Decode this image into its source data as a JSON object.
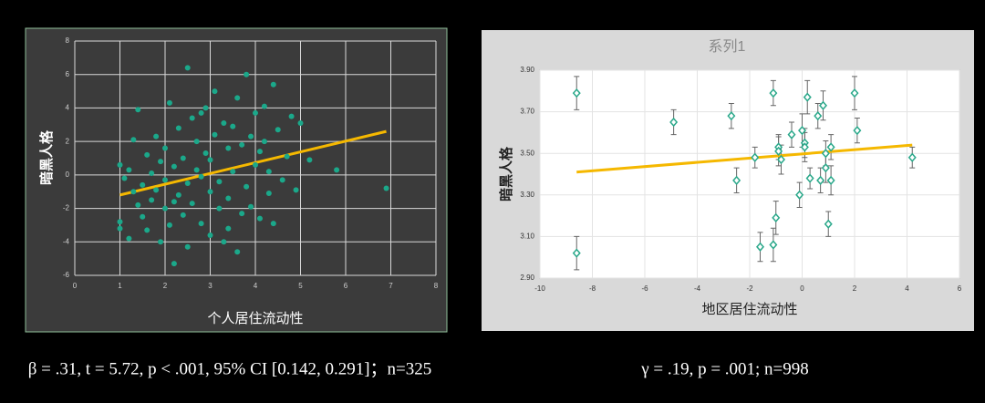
{
  "chart_data": [
    {
      "type": "scatter",
      "marker": "circle",
      "color": "#1ba88a",
      "background": "#3b3b3b",
      "border": "#8fbf9a",
      "grid_color": "#d8d8d8",
      "tick_color": "#cfcfcf",
      "xlabel": "个人居住流动性",
      "ylabel": "暗黑人格",
      "xlim": [
        0,
        8
      ],
      "xticks": [
        0,
        1,
        2,
        3,
        4,
        5,
        6,
        7,
        8
      ],
      "ylim": [
        -6,
        8
      ],
      "yticks": [
        -6,
        -4,
        -2,
        0,
        2,
        4,
        6,
        8
      ],
      "grid": true,
      "x": [
        1.0,
        1.0,
        1.0,
        1.1,
        1.2,
        1.2,
        1.3,
        1.3,
        1.4,
        1.4,
        1.5,
        1.5,
        1.6,
        1.6,
        1.7,
        1.7,
        1.8,
        1.8,
        1.9,
        1.9,
        2.0,
        2.0,
        2.0,
        2.1,
        2.1,
        2.2,
        2.2,
        2.3,
        2.3,
        2.4,
        2.4,
        2.5,
        2.5,
        2.5,
        2.6,
        2.6,
        2.7,
        2.7,
        2.8,
        2.8,
        2.9,
        2.9,
        3.0,
        3.0,
        3.0,
        3.1,
        3.1,
        3.2,
        3.2,
        3.3,
        3.3,
        3.4,
        3.4,
        3.5,
        3.5,
        3.6,
        3.6,
        3.7,
        3.7,
        3.8,
        3.8,
        3.9,
        3.9,
        4.0,
        4.0,
        4.1,
        4.1,
        4.2,
        4.3,
        4.3,
        4.4,
        4.4,
        4.5,
        4.6,
        4.7,
        4.8,
        4.9,
        5.0,
        5.2,
        5.8,
        6.9,
        4.2,
        3.4,
        2.8,
        2.2
      ],
      "values": [
        -2.8,
        -3.2,
        0.6,
        -0.2,
        -3.8,
        0.3,
        -1.0,
        2.1,
        3.9,
        -1.8,
        -0.6,
        -2.5,
        1.2,
        -3.3,
        0.1,
        -1.5,
        2.3,
        -0.9,
        -4.0,
        0.8,
        -2.0,
        1.6,
        -0.3,
        4.3,
        -3.0,
        -5.3,
        0.5,
        -1.2,
        2.8,
        -2.4,
        1.0,
        6.4,
        -0.5,
        -4.3,
        3.4,
        -1.7,
        0.3,
        2.0,
        -2.9,
        -0.1,
        4.0,
        1.3,
        -3.6,
        -1.0,
        0.9,
        5.0,
        2.4,
        -2.0,
        -0.4,
        3.1,
        -4.0,
        1.6,
        -1.4,
        0.2,
        2.9,
        -4.6,
        4.6,
        -2.3,
        1.8,
        6.0,
        -0.7,
        2.3,
        -1.9,
        3.7,
        0.6,
        -2.6,
        1.4,
        4.1,
        0.2,
        -1.1,
        5.4,
        -2.9,
        2.7,
        -0.3,
        1.1,
        3.5,
        -0.9,
        3.1,
        0.9,
        0.3,
        -0.8,
        2.0,
        -3.2,
        3.7,
        -1.6
      ],
      "trendline": {
        "x": [
          1.0,
          6.9
        ],
        "y": [
          -1.2,
          2.6
        ],
        "color": "#f5b800"
      }
    },
    {
      "type": "scatter",
      "marker": "diamond",
      "color": "#2aa88a",
      "background": "#d9d9d9",
      "plot_background": "#ffffff",
      "grid_color": "#e3e3e3",
      "tick_color": "#333333",
      "error_color": "#666666",
      "title": "系列1",
      "xlabel": "地区居住流动性",
      "ylabel": "暗黑人格",
      "xlim": [
        -10,
        6
      ],
      "xticks": [
        -10,
        -8,
        -6,
        -4,
        -2,
        0,
        2,
        4,
        6
      ],
      "ylim": [
        2.9,
        3.9
      ],
      "yticks": [
        {
          "value": 2.9,
          "label": "2.90"
        },
        {
          "value": 3.1,
          "label": "3.10"
        },
        {
          "value": 3.3,
          "label": "3.30"
        },
        {
          "value": 3.5,
          "label": "3.50"
        },
        {
          "value": 3.7,
          "label": "3.70"
        },
        {
          "value": 3.9,
          "label": "3.90"
        }
      ],
      "grid": true,
      "x": [
        -8.6,
        -8.6,
        -4.9,
        -2.7,
        -2.5,
        -1.8,
        -1.6,
        -1.1,
        -1.1,
        -1.0,
        -0.9,
        -0.9,
        -0.8,
        -0.4,
        -0.1,
        0,
        0.1,
        0.1,
        0.2,
        0.3,
        0.6,
        0.7,
        0.8,
        0.9,
        0.9,
        1.0,
        1.1,
        1.1,
        2.0,
        2.1,
        4.2
      ],
      "values": [
        3.79,
        3.02,
        3.65,
        3.68,
        3.37,
        3.48,
        3.05,
        3.06,
        3.79,
        3.19,
        3.53,
        3.51,
        3.47,
        3.59,
        3.3,
        3.61,
        3.55,
        3.53,
        3.77,
        3.38,
        3.68,
        3.37,
        3.73,
        3.5,
        3.43,
        3.16,
        3.37,
        3.53,
        3.79,
        3.61,
        3.48
      ],
      "errors": [
        0.08,
        0.08,
        0.06,
        0.06,
        0.06,
        0.05,
        0.07,
        0.08,
        0.06,
        0.08,
        0.06,
        0.07,
        0.07,
        0.06,
        0.06,
        0.08,
        0.07,
        0.07,
        0.08,
        0.05,
        0.06,
        0.06,
        0.07,
        0.06,
        0.07,
        0.06,
        0.07,
        0.06,
        0.08,
        0.06,
        0.05
      ],
      "trendline": {
        "x": [
          -8.6,
          4.2
        ],
        "y": [
          3.41,
          3.54
        ],
        "color": "#f5b800"
      }
    }
  ],
  "captions": [
    "β = .31, t = 5.72, p < .001, 95% CI [0.142, 0.291]；n=325",
    "γ = .19, p = .001; n=998"
  ]
}
